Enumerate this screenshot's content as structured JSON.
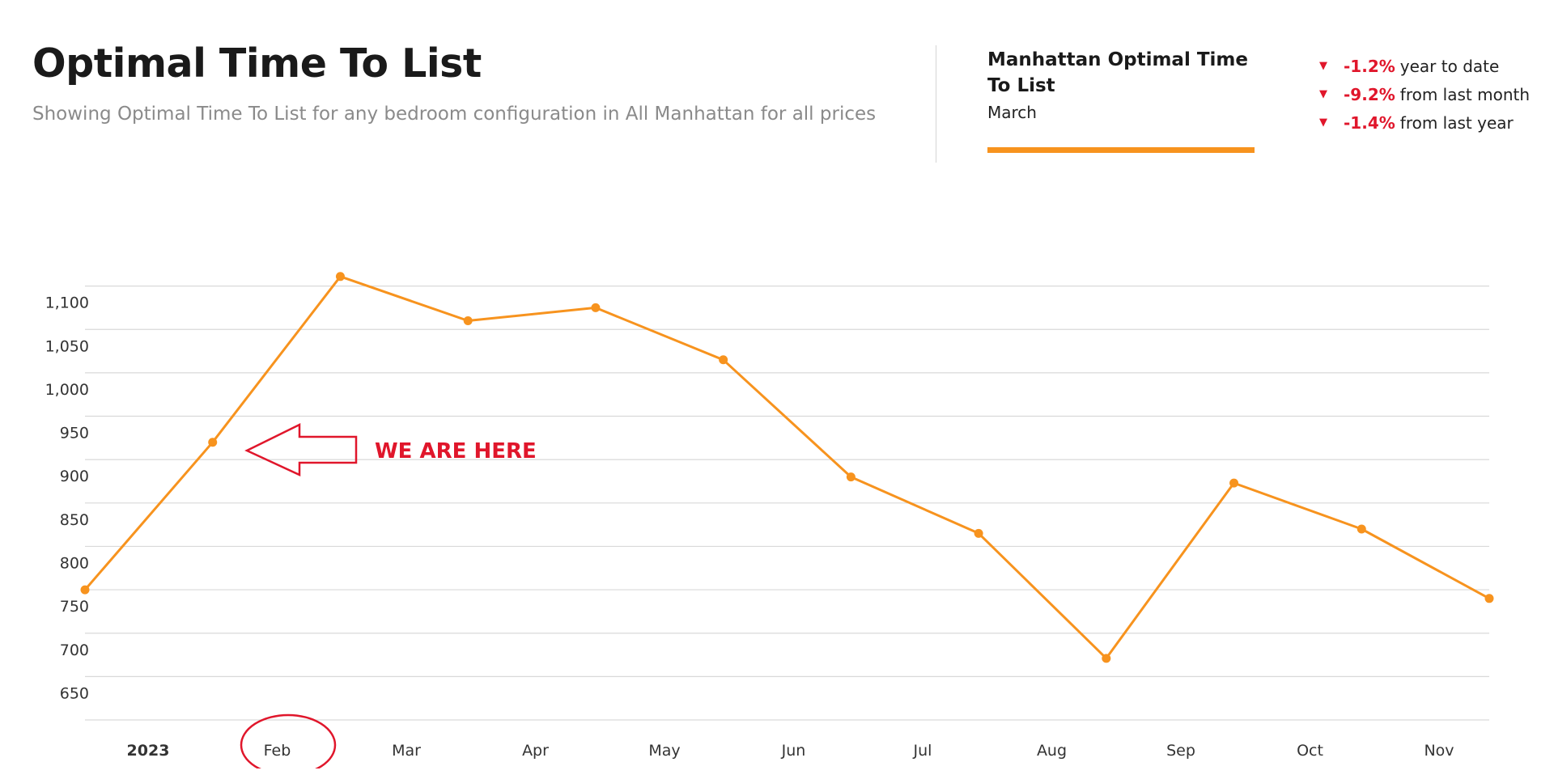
{
  "header": {
    "title": "Optimal Time To List",
    "subtitle": "Showing Optimal Time To List for any bedroom configuration in All Manhattan for all prices"
  },
  "summary": {
    "title": "Manhattan Optimal Time To List",
    "period": "March",
    "accent_color": "#f7931e"
  },
  "stats": [
    {
      "value": "-1.2%",
      "label": "year to date",
      "direction": "down"
    },
    {
      "value": "-9.2%",
      "label": "from last month",
      "direction": "down"
    },
    {
      "value": "-1.4%",
      "label": "from last year",
      "direction": "down"
    }
  ],
  "colors": {
    "line": "#f7931e",
    "negative": "#e0162b",
    "grid": "#d9d9d9"
  },
  "annotation": {
    "text": "WE ARE HERE",
    "circled_label": "Feb"
  },
  "chart_data": {
    "type": "line",
    "title": "",
    "xlabel": "",
    "ylabel": "",
    "x_tick_labels": [
      "2023",
      "Feb",
      "Mar",
      "Apr",
      "May",
      "Jun",
      "Jul",
      "Aug",
      "Sep",
      "Oct",
      "Nov"
    ],
    "y_ticks": [
      650,
      700,
      750,
      800,
      850,
      900,
      950,
      1000,
      1050,
      1100
    ],
    "ylim": [
      628,
      1150
    ],
    "grid": true,
    "series": [
      {
        "points": [
          {
            "x": "2023-01",
            "y": 778
          },
          {
            "x": "2023-02",
            "y": 948
          },
          {
            "x": "2023-03",
            "y": 1139
          },
          {
            "x": "2023-04",
            "y": 1088
          },
          {
            "x": "2023-05",
            "y": 1103
          },
          {
            "x": "2023-06",
            "y": 1043
          },
          {
            "x": "2023-07",
            "y": 908
          },
          {
            "x": "2023-08",
            "y": 843
          },
          {
            "x": "2023-09",
            "y": 699
          },
          {
            "x": "2023-10",
            "y": 901
          },
          {
            "x": "2023-11",
            "y": 848
          },
          {
            "x": "2023-12",
            "y": 768
          }
        ]
      }
    ]
  }
}
